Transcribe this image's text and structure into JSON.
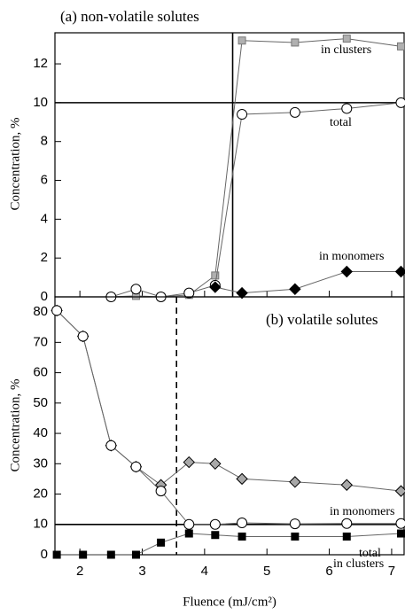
{
  "chart_data": [
    {
      "type": "line",
      "title": "(a)  non-volatile solutes",
      "ylabel": "Concentration, %",
      "x": [
        2.5,
        2.9,
        3.3,
        3.75,
        4.17,
        4.6,
        5.45,
        6.28,
        7.15
      ],
      "series": [
        {
          "name": "in clusters",
          "marker": "square",
          "color": "#b0b0b0",
          "values": [
            0,
            0.05,
            0,
            0.1,
            1.1,
            13.2,
            13.1,
            13.3,
            12.9
          ]
        },
        {
          "name": "total",
          "marker": "circle",
          "color": "#ffffff",
          "values": [
            0,
            0.4,
            0,
            0.2,
            0.6,
            9.4,
            9.5,
            9.7,
            10.0
          ]
        },
        {
          "name": "in monomers",
          "marker": "diamond",
          "color": "#000000",
          "values": [
            null,
            null,
            null,
            null,
            0.5,
            0.2,
            0.4,
            1.3,
            1.3
          ]
        }
      ],
      "xlim": [
        1.6,
        7.2
      ],
      "ylim": [
        0,
        13.6
      ],
      "xticks": [
        2,
        3,
        4,
        5,
        6,
        7
      ],
      "yticks": [
        0,
        2,
        4,
        6,
        8,
        10,
        12
      ],
      "vlines": [
        {
          "value": 4.45,
          "style": "solid"
        }
      ],
      "hlines": [
        10
      ]
    },
    {
      "type": "line",
      "title": "(b)  volatile solutes",
      "ylabel": "Concentration, %",
      "xlabel": "Fluence (mJ/cm²)",
      "x": [
        1.63,
        2.05,
        2.5,
        2.9,
        3.3,
        3.75,
        4.17,
        4.6,
        5.45,
        6.28,
        7.15
      ],
      "series": [
        {
          "name": "in monomers",
          "marker": "diamond",
          "color": "#a8a8a8",
          "values": [
            80.5,
            72,
            36,
            29,
            23,
            30.5,
            30,
            25,
            24,
            23,
            21
          ]
        },
        {
          "name": "total",
          "marker": "circle",
          "color": "#ffffff",
          "values": [
            80.5,
            72,
            36,
            29,
            21,
            10,
            10,
            10.5,
            10.2,
            10.3,
            10.3
          ]
        },
        {
          "name": "in clusters",
          "marker": "square",
          "color": "#000000",
          "values": [
            0,
            0,
            0,
            0,
            4,
            7,
            6.5,
            6,
            6,
            6,
            7
          ]
        }
      ],
      "xlim": [
        1.6,
        7.2
      ],
      "ylim": [
        0,
        85
      ],
      "xticks": [
        2,
        3,
        4,
        5,
        6,
        7
      ],
      "yticks": [
        0,
        10,
        20,
        30,
        40,
        50,
        60,
        70,
        80
      ],
      "vlines": [
        {
          "value": 3.55,
          "style": "dashed"
        }
      ],
      "hlines": [
        10
      ]
    }
  ]
}
